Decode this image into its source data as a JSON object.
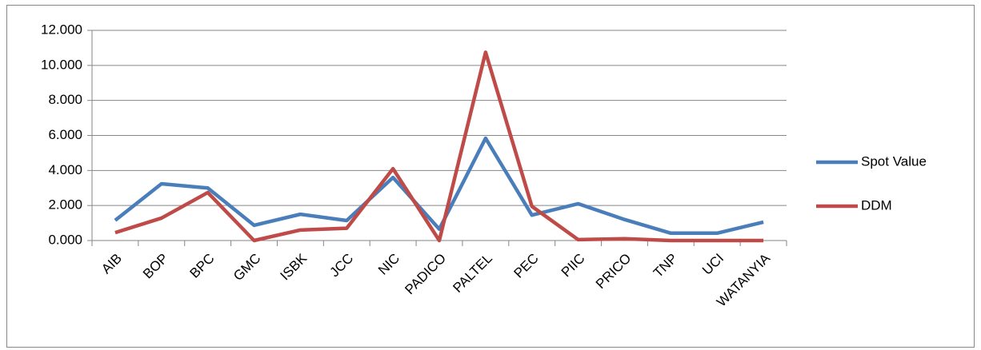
{
  "chart_data": {
    "type": "line",
    "categories": [
      "AIB",
      "BOP",
      "BPC",
      "GMC",
      "ISBK",
      "JCC",
      "NIC",
      "PADICO",
      "PALTEL",
      "PEC",
      "PIIC",
      "PRICO",
      "TNP",
      "UCI",
      "WATANYIA"
    ],
    "series": [
      {
        "name": "Spot Value",
        "color": "#4a7ebb",
        "values": [
          1.15,
          3.24,
          3.0,
          0.87,
          1.5,
          1.14,
          3.6,
          0.65,
          5.84,
          1.45,
          2.1,
          1.2,
          0.42,
          0.42,
          1.05
        ]
      },
      {
        "name": "DDM",
        "color": "#be4b48",
        "values": [
          0.45,
          1.28,
          2.74,
          0.0,
          0.6,
          0.7,
          4.1,
          0.0,
          10.75,
          1.95,
          0.05,
          0.1,
          0.0,
          0.0,
          0.0
        ]
      }
    ],
    "ylim": [
      0,
      12
    ],
    "yticks": [
      {
        "value": 0,
        "label": "0.000"
      },
      {
        "value": 2,
        "label": "2.000"
      },
      {
        "value": 4,
        "label": "4.000"
      },
      {
        "value": 6,
        "label": "6.000"
      },
      {
        "value": 8,
        "label": "8.000"
      },
      {
        "value": 10,
        "label": "10.000"
      },
      {
        "value": 12,
        "label": "12.000"
      }
    ],
    "grid": true,
    "legend": "right"
  }
}
